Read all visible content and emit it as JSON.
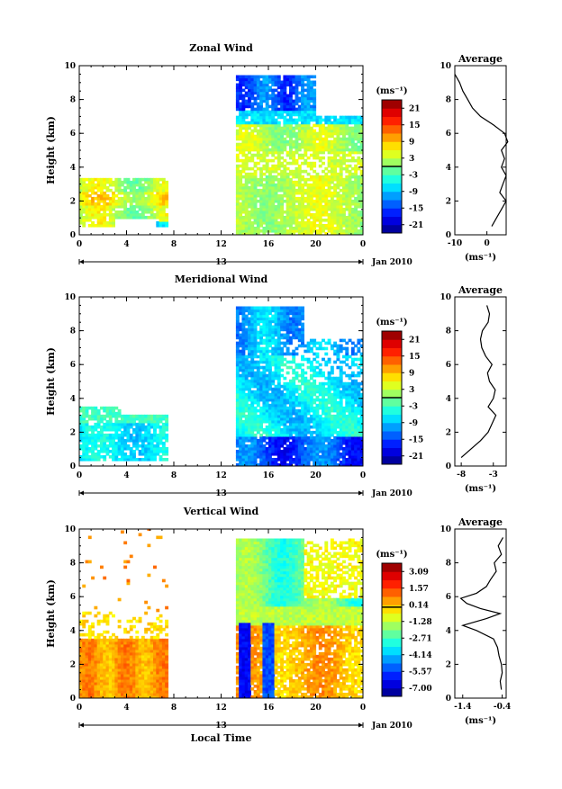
{
  "chart_data": [
    {
      "type": "heatmap",
      "title": "Zonal Wind",
      "ylabel": "Height (km)",
      "xlim": [
        0,
        24
      ],
      "ylim": [
        0,
        10
      ],
      "x_tick_labels": [
        "0",
        "4",
        "8",
        "12",
        "16",
        "20",
        "0"
      ],
      "y_tick_labels": [
        "0",
        "2",
        "4",
        "6",
        "8",
        "10"
      ],
      "date_marker": "13",
      "date_label": "Jan 2010",
      "colorbar": {
        "unit": "(ms⁻¹)",
        "tick_labels": [
          "21",
          "15",
          "9",
          "3",
          "-3",
          "-9",
          "-15",
          "-21"
        ],
        "min": -24,
        "max": 24
      },
      "average_profile": {
        "title": "Average",
        "xlabel": "(ms⁻¹)",
        "xlim": [
          -10,
          6
        ],
        "x_tick_labels": [
          "-10",
          "0"
        ],
        "y_tick_labels": [
          "0",
          "2",
          "4",
          "6",
          "8",
          "10"
        ],
        "heights": [
          0.5,
          1.0,
          1.5,
          2.0,
          2.5,
          3.0,
          3.5,
          4.0,
          4.5,
          5.0,
          5.5,
          6.0,
          6.5,
          7.0,
          7.5,
          8.0,
          8.5,
          9.0,
          9.5
        ],
        "values": [
          1.5,
          3.0,
          4.5,
          6.0,
          4.0,
          5.0,
          6.0,
          4.5,
          5.5,
          4.5,
          6.5,
          5.5,
          2.0,
          -2.0,
          -4.5,
          -6.0,
          -7.5,
          -8.5,
          -10.0
        ]
      }
    },
    {
      "type": "heatmap",
      "title": "Meridional Wind",
      "ylabel": "Height (km)",
      "xlim": [
        0,
        24
      ],
      "ylim": [
        0,
        10
      ],
      "x_tick_labels": [
        "0",
        "4",
        "8",
        "12",
        "16",
        "20",
        "0"
      ],
      "y_tick_labels": [
        "0",
        "2",
        "4",
        "6",
        "8",
        "10"
      ],
      "date_marker": "13",
      "date_label": "Jan 2010",
      "colorbar": {
        "unit": "(ms⁻¹)",
        "tick_labels": [
          "21",
          "15",
          "9",
          "3",
          "-3",
          "-9",
          "-15",
          "-21"
        ],
        "min": -24,
        "max": 24
      },
      "average_profile": {
        "title": "Average",
        "xlabel": "(ms⁻¹)",
        "xlim": [
          -9,
          -1
        ],
        "x_tick_labels": [
          "-8",
          "-3"
        ],
        "y_tick_labels": [
          "0",
          "2",
          "4",
          "6",
          "8",
          "10"
        ],
        "heights": [
          0.5,
          1.0,
          1.5,
          2.0,
          2.5,
          3.0,
          3.5,
          4.0,
          4.5,
          5.0,
          5.5,
          6.0,
          6.5,
          7.0,
          7.5,
          8.0,
          8.5,
          9.0,
          9.5
        ],
        "values": [
          -8.0,
          -6.5,
          -5.0,
          -3.8,
          -3.2,
          -2.6,
          -3.8,
          -3.0,
          -2.7,
          -3.6,
          -3.9,
          -3.2,
          -4.2,
          -4.8,
          -5.0,
          -4.7,
          -3.8,
          -3.6,
          -4.0
        ]
      }
    },
    {
      "type": "heatmap",
      "title": "Vertical Wind",
      "xlabel": "Local Time",
      "ylabel": "Height (km)",
      "xlim": [
        0,
        24
      ],
      "ylim": [
        0,
        10
      ],
      "x_tick_labels": [
        "0",
        "4",
        "8",
        "12",
        "16",
        "20",
        "0"
      ],
      "y_tick_labels": [
        "0",
        "2",
        "4",
        "6",
        "8",
        "10"
      ],
      "date_marker": "13",
      "date_label": "Jan 2010",
      "colorbar": {
        "unit": "(ms⁻¹)",
        "tick_labels": [
          "3.09",
          "1.57",
          "0.14",
          "-1.28",
          "-2.71",
          "-4.14",
          "-5.57",
          "-7.00"
        ],
        "min": -7.7,
        "max": 3.8
      },
      "average_profile": {
        "title": "Average",
        "xlabel": "(ms⁻¹)",
        "xlim": [
          -1.6,
          -0.3
        ],
        "x_tick_labels": [
          "-1.4",
          "-0.4"
        ],
        "y_tick_labels": [
          "0",
          "2",
          "4",
          "6",
          "8",
          "10"
        ],
        "heights": [
          0.5,
          1.0,
          1.5,
          2.0,
          2.5,
          3.0,
          3.5,
          4.0,
          4.3,
          4.7,
          5.0,
          5.3,
          5.6,
          5.9,
          6.2,
          6.6,
          7.0,
          7.5,
          8.0,
          8.5,
          9.0,
          9.5
        ],
        "values": [
          -0.42,
          -0.45,
          -0.4,
          -0.42,
          -0.48,
          -0.52,
          -0.62,
          -1.05,
          -1.4,
          -0.8,
          -0.45,
          -0.95,
          -1.3,
          -1.45,
          -1.05,
          -0.8,
          -0.7,
          -0.55,
          -0.6,
          -0.42,
          -0.5,
          -0.38
        ]
      }
    }
  ]
}
